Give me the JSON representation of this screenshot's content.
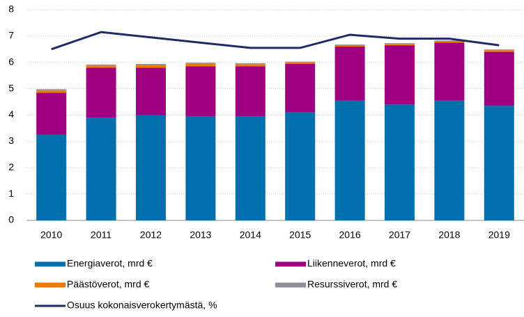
{
  "chart_data": {
    "type": "bar",
    "stacked": true,
    "categories": [
      "2010",
      "2011",
      "2012",
      "2013",
      "2014",
      "2015",
      "2016",
      "2017",
      "2018",
      "2019"
    ],
    "series": [
      {
        "name": "Energiaverot, mrd €",
        "color": "#0070ad",
        "values": [
          3.25,
          3.9,
          4.0,
          3.95,
          3.95,
          4.1,
          4.55,
          4.4,
          4.55,
          4.35
        ]
      },
      {
        "name": "Liikenneverot, mrd €",
        "color": "#a0007f",
        "values": [
          1.6,
          1.9,
          1.8,
          1.9,
          1.9,
          1.85,
          2.05,
          2.25,
          2.2,
          2.05
        ]
      },
      {
        "name": "Päästöverot, mrd €",
        "color": "#f07800",
        "values": [
          0.08,
          0.08,
          0.1,
          0.1,
          0.08,
          0.05,
          0.05,
          0.05,
          0.05,
          0.06
        ]
      },
      {
        "name": "Resurssiverot, mrd €",
        "color": "#8e8e9e",
        "values": [
          0.05,
          0.04,
          0.04,
          0.04,
          0.04,
          0.03,
          0.03,
          0.03,
          0.03,
          0.03
        ]
      },
      {
        "name": "Osuus kokonaisverokertymästä, %",
        "color": "#1f2a6b",
        "type": "line",
        "values": [
          6.5,
          7.15,
          6.95,
          6.75,
          6.55,
          6.55,
          7.05,
          6.9,
          6.9,
          6.65
        ]
      }
    ],
    "ylim": [
      0,
      8
    ],
    "yticks": [
      0,
      1,
      2,
      3,
      4,
      5,
      6,
      7,
      8
    ],
    "grid": true,
    "legend": "bottom"
  }
}
